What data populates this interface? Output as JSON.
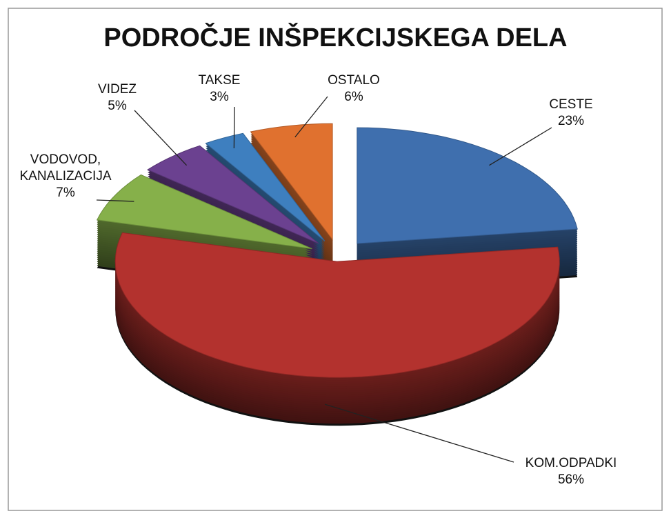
{
  "chart_data": {
    "type": "pie",
    "title": "PODROČJE INŠPEKCIJSKEGA DELA",
    "categories": [
      "CESTE",
      "KOM.ODPADKI",
      "VODOVOD, KANALIZACIJA",
      "VIDEZ",
      "TAKSE",
      "OSTALO"
    ],
    "values": [
      23,
      56,
      7,
      5,
      3,
      6
    ],
    "value_labels": [
      "23%",
      "56%",
      "7%",
      "5%",
      "3%",
      "6%"
    ],
    "colors": [
      "#3f6fae",
      "#b3322e",
      "#86b04a",
      "#6b4190",
      "#3e7fbf",
      "#e0712f"
    ]
  }
}
